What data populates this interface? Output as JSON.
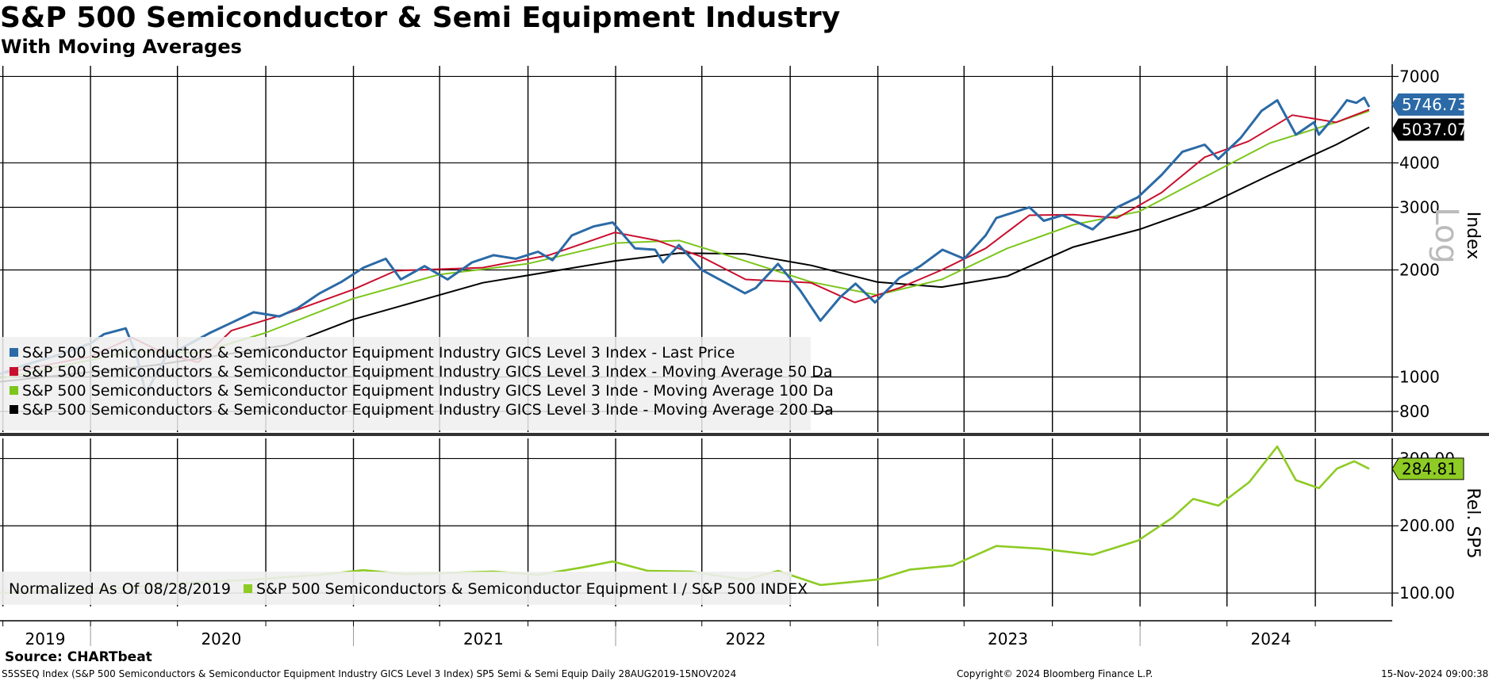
{
  "header": {
    "title": "S&P 500 Semiconductor & Semi Equipment Industry",
    "subtitle": "With Moving Averages"
  },
  "footer": {
    "source": "Source: CHARTbeat",
    "description": "S5SSEQ Index (S&P 500 Semiconductors & Semiconductor Equipment Industry GICS Level 3 Index) SP5 Semi & Semi Equip  Daily 28AUG2019-15NOV2024",
    "copyright": "Copyright© 2024 Bloomberg Finance L.P.",
    "timestamp": "15-Nov-2024 09:00:38"
  },
  "colors": {
    "last_price": "#2b6aa6",
    "ma50": "#c8102e",
    "ma100": "#7cc61c",
    "ma200": "#000000",
    "relative": "#8ecb24"
  },
  "chart_data": [
    {
      "type": "line",
      "panel": "top",
      "scale": "log",
      "axis_title": "Index",
      "watermark": "Log",
      "ylim": [
        700,
        7500
      ],
      "yticks": [
        800,
        1000,
        2000,
        3000,
        4000,
        7000
      ],
      "x_labels": [
        "2019",
        "2020",
        "2021",
        "2022",
        "2023",
        "2024"
      ],
      "grid": true,
      "legend_position": "bottom-left",
      "series": [
        {
          "name": "S&P 500 Semiconductors & Semiconductor Equipment Industry GICS Level 3 Index - Last Price",
          "key": "last_price",
          "last_label": "5746.73",
          "points": [
            [
              "2019-08-28",
              1020
            ],
            [
              "2019-10-01",
              1080
            ],
            [
              "2019-11-15",
              1150
            ],
            [
              "2019-12-31",
              1240
            ],
            [
              "2020-01-20",
              1320
            ],
            [
              "2020-02-19",
              1370
            ],
            [
              "2020-03-05",
              1150
            ],
            [
              "2020-03-18",
              900
            ],
            [
              "2020-04-15",
              1140
            ],
            [
              "2020-05-15",
              1230
            ],
            [
              "2020-06-15",
              1330
            ],
            [
              "2020-07-15",
              1420
            ],
            [
              "2020-08-15",
              1520
            ],
            [
              "2020-09-20",
              1480
            ],
            [
              "2020-10-15",
              1560
            ],
            [
              "2020-11-15",
              1720
            ],
            [
              "2020-12-15",
              1850
            ],
            [
              "2021-01-15",
              2030
            ],
            [
              "2021-02-15",
              2150
            ],
            [
              "2021-03-08",
              1880
            ],
            [
              "2021-04-10",
              2050
            ],
            [
              "2021-05-12",
              1880
            ],
            [
              "2021-06-15",
              2100
            ],
            [
              "2021-07-15",
              2200
            ],
            [
              "2021-08-15",
              2150
            ],
            [
              "2021-09-15",
              2250
            ],
            [
              "2021-10-05",
              2130
            ],
            [
              "2021-11-01",
              2500
            ],
            [
              "2021-12-01",
              2650
            ],
            [
              "2021-12-28",
              2720
            ],
            [
              "2022-01-28",
              2300
            ],
            [
              "2022-02-25",
              2280
            ],
            [
              "2022-03-08",
              2100
            ],
            [
              "2022-03-30",
              2350
            ],
            [
              "2022-05-01",
              2000
            ],
            [
              "2022-06-30",
              1720
            ],
            [
              "2022-07-15",
              1780
            ],
            [
              "2022-08-15",
              2080
            ],
            [
              "2022-09-15",
              1750
            ],
            [
              "2022-10-13",
              1440
            ],
            [
              "2022-11-10",
              1680
            ],
            [
              "2022-12-01",
              1830
            ],
            [
              "2022-12-28",
              1620
            ],
            [
              "2023-01-31",
              1900
            ],
            [
              "2023-03-01",
              2050
            ],
            [
              "2023-04-01",
              2280
            ],
            [
              "2023-05-01",
              2150
            ],
            [
              "2023-05-31",
              2500
            ],
            [
              "2023-06-15",
              2800
            ],
            [
              "2023-07-31",
              3000
            ],
            [
              "2023-08-20",
              2750
            ],
            [
              "2023-09-15",
              2850
            ],
            [
              "2023-10-27",
              2600
            ],
            [
              "2023-11-30",
              3000
            ],
            [
              "2023-12-29",
              3200
            ],
            [
              "2024-01-31",
              3700
            ],
            [
              "2024-02-29",
              4300
            ],
            [
              "2024-03-31",
              4500
            ],
            [
              "2024-04-19",
              4100
            ],
            [
              "2024-05-20",
              4700
            ],
            [
              "2024-06-18",
              5600
            ],
            [
              "2024-07-10",
              6000
            ],
            [
              "2024-08-05",
              4800
            ],
            [
              "2024-08-30",
              5200
            ],
            [
              "2024-09-06",
              4800
            ],
            [
              "2024-10-01",
              5500
            ],
            [
              "2024-10-15",
              6000
            ],
            [
              "2024-10-28",
              5900
            ],
            [
              "2024-11-08",
              6100
            ],
            [
              "2024-11-15",
              5746.73
            ]
          ]
        },
        {
          "name": "S&P 500 Semiconductors & Semiconductor Equipment Industry GICS Level 3 Index - Moving Average 50 Da",
          "key": "ma50",
          "last_label": "",
          "points": [
            [
              "2019-08-28",
              1020
            ],
            [
              "2019-12-31",
              1140
            ],
            [
              "2020-02-28",
              1290
            ],
            [
              "2020-04-15",
              1160
            ],
            [
              "2020-05-30",
              1100
            ],
            [
              "2020-07-15",
              1350
            ],
            [
              "2020-10-01",
              1510
            ],
            [
              "2020-12-31",
              1760
            ],
            [
              "2021-03-01",
              1990
            ],
            [
              "2021-06-30",
              2030
            ],
            [
              "2021-09-30",
              2200
            ],
            [
              "2021-12-31",
              2550
            ],
            [
              "2022-02-28",
              2420
            ],
            [
              "2022-04-30",
              2180
            ],
            [
              "2022-07-01",
              1880
            ],
            [
              "2022-09-30",
              1840
            ],
            [
              "2022-11-30",
              1620
            ],
            [
              "2023-01-31",
              1780
            ],
            [
              "2023-03-31",
              2000
            ],
            [
              "2023-05-31",
              2300
            ],
            [
              "2023-07-31",
              2850
            ],
            [
              "2023-09-30",
              2860
            ],
            [
              "2023-11-30",
              2800
            ],
            [
              "2024-01-31",
              3300
            ],
            [
              "2024-03-31",
              4150
            ],
            [
              "2024-05-31",
              4600
            ],
            [
              "2024-07-31",
              5450
            ],
            [
              "2024-09-30",
              5200
            ],
            [
              "2024-11-15",
              5650
            ]
          ]
        },
        {
          "name": "S&P 500 Semiconductors & Semiconductor Equipment Industry GICS Level 3 Inde - Moving Average 100 Da",
          "key": "ma100",
          "last_label": "",
          "points": [
            [
              "2019-08-28",
              990
            ],
            [
              "2020-02-28",
              1180
            ],
            [
              "2020-05-31",
              1170
            ],
            [
              "2020-08-31",
              1330
            ],
            [
              "2020-12-31",
              1660
            ],
            [
              "2021-04-30",
              1940
            ],
            [
              "2021-08-31",
              2080
            ],
            [
              "2021-12-31",
              2380
            ],
            [
              "2022-03-31",
              2420
            ],
            [
              "2022-06-30",
              2120
            ],
            [
              "2022-09-30",
              1850
            ],
            [
              "2022-12-31",
              1700
            ],
            [
              "2023-03-31",
              1880
            ],
            [
              "2023-06-30",
              2300
            ],
            [
              "2023-09-30",
              2680
            ],
            [
              "2023-12-31",
              2920
            ],
            [
              "2024-03-31",
              3650
            ],
            [
              "2024-06-30",
              4550
            ],
            [
              "2024-09-30",
              5200
            ],
            [
              "2024-11-15",
              5600
            ]
          ]
        },
        {
          "name": "S&P 500 Semiconductors & Semiconductor Equipment Industry GICS Level 3 Inde - Moving Average 200 Da",
          "key": "ma200",
          "last_label": "5037.07",
          "points": [
            [
              "2019-08-28",
              970
            ],
            [
              "2020-03-31",
              1080
            ],
            [
              "2020-09-30",
              1230
            ],
            [
              "2020-12-31",
              1450
            ],
            [
              "2021-06-30",
              1840
            ],
            [
              "2021-12-31",
              2120
            ],
            [
              "2022-03-31",
              2230
            ],
            [
              "2022-06-30",
              2220
            ],
            [
              "2022-09-30",
              2060
            ],
            [
              "2022-12-31",
              1850
            ],
            [
              "2023-03-31",
              1790
            ],
            [
              "2023-06-30",
              1920
            ],
            [
              "2023-09-30",
              2320
            ],
            [
              "2023-12-31",
              2600
            ],
            [
              "2024-03-31",
              3020
            ],
            [
              "2024-06-30",
              3700
            ],
            [
              "2024-09-30",
              4500
            ],
            [
              "2024-11-15",
              5037.07
            ]
          ]
        }
      ]
    },
    {
      "type": "line",
      "panel": "bottom",
      "scale": "linear",
      "axis_title": "Rel. SP5",
      "ylim": [
        80,
        330
      ],
      "yticks": [
        100.0,
        200.0,
        300.0
      ],
      "ytick_labels": [
        "100.00",
        "200.00",
        "300.00"
      ],
      "grid": true,
      "legend_position": "bottom-left",
      "legend_note": "Normalized As Of 08/28/2019",
      "series": [
        {
          "name": "S&P 500 Semiconductors & Semiconductor Equipment I / S&P 500 INDEX",
          "key": "relative",
          "last_label": "284.81",
          "points": [
            [
              "2019-08-28",
              100
            ],
            [
              "2019-11-15",
              104
            ],
            [
              "2020-02-15",
              108
            ],
            [
              "2020-05-15",
              115
            ],
            [
              "2020-08-15",
              120
            ],
            [
              "2020-11-15",
              127
            ],
            [
              "2021-01-15",
              134
            ],
            [
              "2021-03-15",
              128
            ],
            [
              "2021-05-15",
              130
            ],
            [
              "2021-07-15",
              132
            ],
            [
              "2021-09-15",
              127
            ],
            [
              "2021-11-15",
              138
            ],
            [
              "2021-12-28",
              147
            ],
            [
              "2022-02-15",
              133
            ],
            [
              "2022-04-15",
              132
            ],
            [
              "2022-06-30",
              120
            ],
            [
              "2022-08-15",
              133
            ],
            [
              "2022-10-13",
              112
            ],
            [
              "2022-12-31",
              120
            ],
            [
              "2023-02-15",
              135
            ],
            [
              "2023-04-15",
              141
            ],
            [
              "2023-06-15",
              170
            ],
            [
              "2023-08-15",
              166
            ],
            [
              "2023-10-27",
              157
            ],
            [
              "2023-12-29",
              178
            ],
            [
              "2024-02-15",
              212
            ],
            [
              "2024-03-15",
              240
            ],
            [
              "2024-04-19",
              230
            ],
            [
              "2024-06-01",
              265
            ],
            [
              "2024-07-10",
              318
            ],
            [
              "2024-08-05",
              268
            ],
            [
              "2024-09-06",
              256
            ],
            [
              "2024-10-01",
              285
            ],
            [
              "2024-10-25",
              296
            ],
            [
              "2024-11-15",
              284.81
            ]
          ]
        }
      ]
    }
  ]
}
